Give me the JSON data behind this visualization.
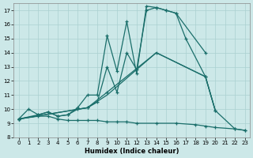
{
  "xlabel": "Humidex (Indice chaleur)",
  "bg_color": "#cce8e8",
  "grid_color": "#aad0d0",
  "line_color": "#1a6e6a",
  "xlim": [
    -0.5,
    23.5
  ],
  "ylim": [
    8,
    17.5
  ],
  "xticks": [
    0,
    1,
    2,
    3,
    4,
    5,
    6,
    7,
    8,
    9,
    10,
    11,
    12,
    13,
    14,
    15,
    16,
    17,
    18,
    19,
    20,
    21,
    22,
    23
  ],
  "yticks": [
    8,
    9,
    10,
    11,
    12,
    13,
    14,
    15,
    16,
    17
  ],
  "series1_x": [
    0,
    1,
    2,
    3,
    4,
    5,
    6,
    7,
    8,
    9,
    10,
    11,
    12,
    13,
    14,
    15,
    16,
    19
  ],
  "series1_y": [
    9.3,
    10.0,
    9.6,
    9.8,
    9.5,
    9.6,
    10.1,
    11.0,
    11.0,
    15.2,
    12.7,
    16.2,
    12.5,
    17.3,
    17.2,
    17.0,
    16.8,
    14.0
  ],
  "series2_x": [
    0,
    2,
    3,
    4,
    5,
    6,
    7,
    8,
    9,
    10,
    11,
    12,
    13,
    14,
    15,
    16,
    17,
    19,
    20
  ],
  "series2_y": [
    9.3,
    9.6,
    9.8,
    9.5,
    9.6,
    10.0,
    10.1,
    10.5,
    13.0,
    11.2,
    14.0,
    12.8,
    17.0,
    17.2,
    17.0,
    16.8,
    15.0,
    12.3,
    9.9
  ],
  "series3_x": [
    0,
    7,
    9,
    14,
    19,
    20
  ],
  "series3_y": [
    9.3,
    10.1,
    11.0,
    14.0,
    12.3,
    9.9
  ],
  "series4_x": [
    0,
    2,
    3,
    4,
    5,
    6,
    7,
    8,
    9,
    10,
    11,
    12,
    14,
    16,
    18,
    19,
    20,
    22,
    23
  ],
  "series4_y": [
    9.3,
    9.5,
    9.5,
    9.3,
    9.2,
    9.2,
    9.2,
    9.2,
    9.1,
    9.1,
    9.1,
    9.0,
    9.0,
    9.0,
    8.9,
    8.8,
    8.7,
    8.6,
    8.5
  ],
  "series5_x": [
    0,
    7,
    9,
    14,
    19,
    20,
    22,
    23
  ],
  "series5_y": [
    9.3,
    10.1,
    11.2,
    14.0,
    12.3,
    9.9,
    8.6,
    8.5
  ]
}
